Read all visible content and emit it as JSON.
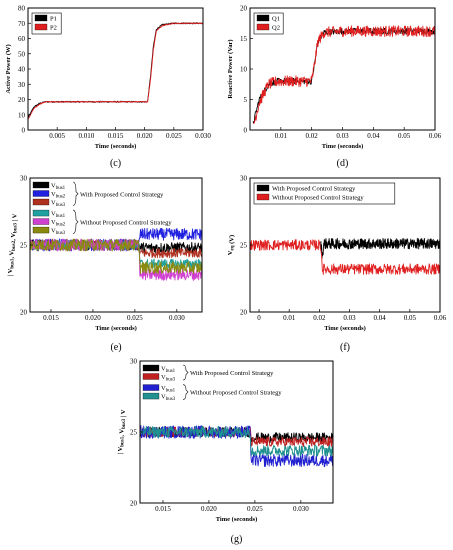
{
  "chart_data": [
    {
      "id": "c",
      "type": "line",
      "caption": "(c)",
      "xlabel": "Time (seconds)",
      "ylabel": "Active Power (W)",
      "xlim": [
        0,
        0.03
      ],
      "ylim": [
        0,
        80
      ],
      "xticks": [
        0.005,
        0.01,
        0.015,
        0.02,
        0.025,
        0.03
      ],
      "xtick_labels": [
        "0.005",
        "0.010",
        "0.015",
        "0.020",
        "0.025",
        "0.030"
      ],
      "yticks": [
        0,
        10,
        20,
        30,
        40,
        50,
        60,
        70,
        80
      ],
      "legend": "top-left",
      "series": [
        {
          "name": "P1",
          "color": "#000000",
          "noise": 0.4,
          "points": [
            [
              0,
              8
            ],
            [
              0.001,
              15
            ],
            [
              0.002,
              17.5
            ],
            [
              0.003,
              18.5
            ],
            [
              0.005,
              18.5
            ],
            [
              0.0205,
              18.5
            ],
            [
              0.021,
              35
            ],
            [
              0.0215,
              55
            ],
            [
              0.022,
              66
            ],
            [
              0.023,
              69
            ],
            [
              0.025,
              70
            ],
            [
              0.03,
              70
            ]
          ]
        },
        {
          "name": "P2",
          "color": "#e02020",
          "noise": 0.3,
          "points": [
            [
              0,
              7
            ],
            [
              0.001,
              14
            ],
            [
              0.002,
              17
            ],
            [
              0.003,
              18.5
            ],
            [
              0.005,
              18.5
            ],
            [
              0.0205,
              18.5
            ],
            [
              0.021,
              33
            ],
            [
              0.0215,
              53
            ],
            [
              0.022,
              65
            ],
            [
              0.023,
              68.5
            ],
            [
              0.025,
              70
            ],
            [
              0.03,
              70
            ]
          ]
        }
      ]
    },
    {
      "id": "d",
      "type": "line",
      "caption": "(d)",
      "xlabel": "Time (seconds)",
      "ylabel": "Reactive Power (Var)",
      "xlim": [
        0,
        0.06
      ],
      "ylim": [
        0,
        20
      ],
      "xticks": [
        0.01,
        0.02,
        0.03,
        0.04,
        0.05,
        0.06
      ],
      "xtick_labels": [
        "0.01",
        "0.02",
        "0.03",
        "0.04",
        "0.05",
        "0.06"
      ],
      "yticks": [
        0,
        5,
        10,
        15,
        20
      ],
      "legend": "top-left",
      "series": [
        {
          "name": "Q1",
          "color": "#000000",
          "noise": 0.5,
          "points": [
            [
              0.001,
              1
            ],
            [
              0.003,
              5
            ],
            [
              0.006,
              7.5
            ],
            [
              0.009,
              8
            ],
            [
              0.02,
              8
            ],
            [
              0.021,
              11
            ],
            [
              0.022,
              14.5
            ],
            [
              0.024,
              16
            ],
            [
              0.03,
              16.2
            ],
            [
              0.06,
              16.2
            ]
          ]
        },
        {
          "name": "Q2",
          "color": "#e02020",
          "noise": 0.9,
          "points": [
            [
              0.001,
              0.5
            ],
            [
              0.003,
              4.5
            ],
            [
              0.006,
              7.5
            ],
            [
              0.009,
              8
            ],
            [
              0.02,
              8
            ],
            [
              0.021,
              11
            ],
            [
              0.022,
              14.5
            ],
            [
              0.024,
              16
            ],
            [
              0.03,
              16.2
            ],
            [
              0.06,
              16.2
            ]
          ]
        }
      ]
    },
    {
      "id": "e",
      "type": "line",
      "caption": "(e)",
      "xlabel": "Time (seconds)",
      "ylabel": "| V_bus1, V_bus2, V_bus3 | V",
      "xlim": [
        0.0125,
        0.033
      ],
      "ylim": [
        20,
        30
      ],
      "xticks": [
        0.015,
        0.02,
        0.025,
        0.03
      ],
      "xtick_labels": [
        "0.015",
        "0.020",
        "0.025",
        "0.030"
      ],
      "yticks": [
        20,
        25,
        30
      ],
      "legend": "top-left",
      "legend_groups": [
        {
          "label": "With Proposed Control Strategy",
          "members": [
            0,
            1,
            2
          ]
        },
        {
          "label": "Without Proposed Control Strategy",
          "members": [
            3,
            4,
            5
          ]
        }
      ],
      "series": [
        {
          "name": "V_bus1",
          "color": "#000000",
          "noise": 0.4,
          "points": [
            [
              0.0125,
              25
            ],
            [
              0.0255,
              25
            ],
            [
              0.0256,
              24.8
            ],
            [
              0.033,
              24.8
            ]
          ]
        },
        {
          "name": "V_bus2",
          "color": "#2020e0",
          "noise": 0.45,
          "points": [
            [
              0.0125,
              25
            ],
            [
              0.0255,
              25
            ],
            [
              0.0256,
              25.8
            ],
            [
              0.033,
              25.8
            ]
          ]
        },
        {
          "name": "V_bus3",
          "color": "#b03020",
          "noise": 0.35,
          "points": [
            [
              0.0125,
              25
            ],
            [
              0.0255,
              25
            ],
            [
              0.0256,
              24.4
            ],
            [
              0.033,
              24.4
            ]
          ]
        },
        {
          "name": "V_bus1",
          "color": "#20a0a0",
          "noise": 0.35,
          "points": [
            [
              0.0125,
              25
            ],
            [
              0.0255,
              25
            ],
            [
              0.0256,
              23.6
            ],
            [
              0.033,
              23.6
            ]
          ]
        },
        {
          "name": "V_bus2",
          "color": "#d040d0",
          "noise": 0.45,
          "points": [
            [
              0.0125,
              25
            ],
            [
              0.0255,
              25
            ],
            [
              0.0256,
              22.8
            ],
            [
              0.033,
              22.8
            ]
          ]
        },
        {
          "name": "V_bus3",
          "color": "#8a8a10",
          "noise": 0.45,
          "points": [
            [
              0.0125,
              25
            ],
            [
              0.0255,
              25
            ],
            [
              0.0256,
              23.3
            ],
            [
              0.033,
              23.3
            ]
          ]
        }
      ]
    },
    {
      "id": "f",
      "type": "line",
      "caption": "(f)",
      "xlabel": "Time (seconds)",
      "ylabel": "V_eq (V)",
      "xlim": [
        -0.003,
        0.06
      ],
      "ylim": [
        20,
        30
      ],
      "xticks": [
        0,
        0.01,
        0.02,
        0.03,
        0.04,
        0.05,
        0.06
      ],
      "xtick_labels": [
        "0",
        "0.01",
        "0.02",
        "0.03",
        "0.04",
        "0.05",
        "0.06"
      ],
      "yticks": [
        20,
        25,
        30
      ],
      "legend": "top-left",
      "series": [
        {
          "name": "With Proposed Control Strategy",
          "color": "#000000",
          "noise": 0.4,
          "points": [
            [
              0.0205,
              25
            ],
            [
              0.021,
              24.2
            ],
            [
              0.0215,
              25.1
            ],
            [
              0.06,
              25.1
            ]
          ]
        },
        {
          "name": "Without Proposed Control Strategy",
          "color": "#e02020",
          "noise": 0.4,
          "points": [
            [
              -0.003,
              25
            ],
            [
              0.0205,
              25
            ],
            [
              0.021,
              23.2
            ],
            [
              0.06,
              23.2
            ]
          ]
        }
      ]
    },
    {
      "id": "g",
      "type": "line",
      "caption": "(g)",
      "xlabel": "Time (seconds)",
      "ylabel": "| V_bus1, V_bus3 | V",
      "xlim": [
        0.0125,
        0.0335
      ],
      "ylim": [
        20,
        30
      ],
      "xticks": [
        0.015,
        0.02,
        0.025,
        0.03
      ],
      "xtick_labels": [
        "0.015",
        "0.020",
        "0.025",
        "0.030"
      ],
      "yticks": [
        20,
        25,
        30
      ],
      "legend": "top-left",
      "legend_groups": [
        {
          "label": "With Proposed Control Strategy",
          "members": [
            0,
            1
          ]
        },
        {
          "label": "Without Proposed Control Strategy",
          "members": [
            2,
            3
          ]
        }
      ],
      "series": [
        {
          "name": "V_bus1",
          "color": "#000000",
          "noise": 0.35,
          "points": [
            [
              0.0125,
              25
            ],
            [
              0.0245,
              25
            ],
            [
              0.0246,
              24.6
            ],
            [
              0.0335,
              24.6
            ]
          ]
        },
        {
          "name": "V_bus3",
          "color": "#c02020",
          "noise": 0.35,
          "points": [
            [
              0.0125,
              25
            ],
            [
              0.0245,
              25
            ],
            [
              0.0246,
              24.3
            ],
            [
              0.0335,
              24.3
            ]
          ]
        },
        {
          "name": "V_bus1",
          "color": "#2020d0",
          "noise": 0.45,
          "points": [
            [
              0.0125,
              25
            ],
            [
              0.0245,
              25
            ],
            [
              0.0246,
              23.0
            ],
            [
              0.0335,
              23.0
            ]
          ]
        },
        {
          "name": "V_bus3",
          "color": "#209090",
          "noise": 0.4,
          "points": [
            [
              0.0125,
              25
            ],
            [
              0.0245,
              25
            ],
            [
              0.0246,
              23.7
            ],
            [
              0.0335,
              23.7
            ]
          ]
        }
      ]
    }
  ]
}
